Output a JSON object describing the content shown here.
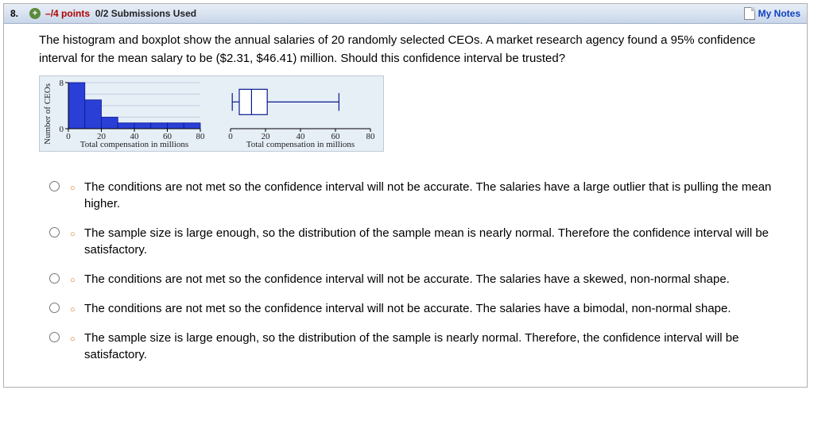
{
  "header": {
    "qnum": "8.",
    "points_neg": "–/4 points",
    "submissions": "0/2 Submissions Used",
    "my_notes": "My Notes"
  },
  "prompt": "The histogram and boxplot show the annual salaries of 20 randomly selected CEOs. A market research agency found a 95% confidence interval for the mean salary to be ($2.31, $46.41) million. Should this confidence interval be trusted?",
  "histogram": {
    "type": "histogram",
    "ylabel": "Number of CEOs",
    "xlabel": "Total compensation in millions",
    "xlim": [
      0,
      80
    ],
    "xticks": [
      0,
      20,
      40,
      60,
      80
    ],
    "ylim": [
      0,
      8
    ],
    "yticks": [
      0,
      8
    ],
    "bin_width": 10,
    "bin_starts": [
      0,
      10,
      20,
      30,
      40,
      50,
      60,
      70
    ],
    "counts": [
      8,
      5,
      2,
      1,
      1,
      1,
      1,
      1
    ],
    "bar_color": "#2a3fd6",
    "bar_border": "#0a1a90",
    "axis_color": "#000000",
    "bg_color": "#e6eef6"
  },
  "boxplot": {
    "type": "boxplot",
    "xlabel": "Total compensation in millions",
    "xlim": [
      0,
      80
    ],
    "xticks": [
      0,
      20,
      40,
      60,
      80
    ],
    "whisker_low": 1,
    "q1": 5,
    "median": 12,
    "q3": 21,
    "whisker_high": 62,
    "box_fill": "#ffffff",
    "line_color": "#0a1a90",
    "axis_color": "#000000"
  },
  "options": [
    "The conditions are not met so the confidence interval will not be accurate. The salaries have a large outlier that is pulling the mean higher.",
    "The sample size is large enough, so the distribution of the sample mean is nearly normal. Therefore the confidence interval will be satisfactory.",
    "The conditions are not met so the confidence interval will not be accurate. The salaries have a skewed, non-normal shape.",
    "The conditions are not met so the confidence interval will not be accurate. The salaries have a bimodal, non-normal shape.",
    "The sample size is large enough, so the distribution of the sample is nearly normal. Therefore, the confidence interval will be satisfactory."
  ]
}
